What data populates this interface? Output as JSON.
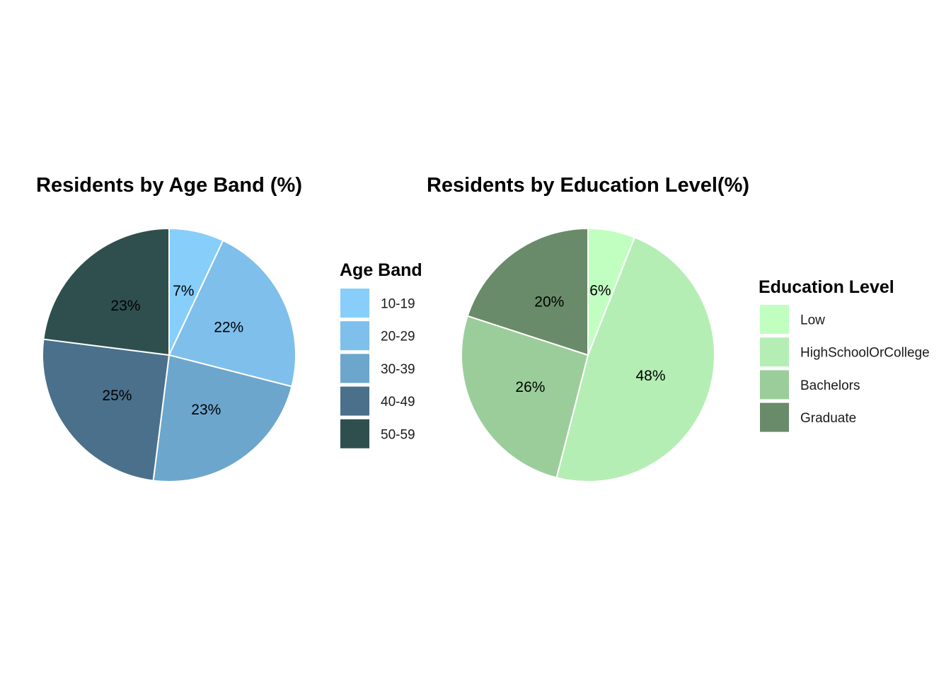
{
  "chart_data": [
    {
      "type": "pie",
      "title": "Residents by Age Band (%)",
      "legend_title": "Age Band",
      "legend_position": "right",
      "categories": [
        "10-19",
        "20-29",
        "30-39",
        "40-49",
        "50-59"
      ],
      "values": [
        7,
        22,
        23,
        25,
        23
      ],
      "labels": [
        "7%",
        "22%",
        "23%",
        "25%",
        "23%"
      ],
      "colors": [
        "#87CEFA",
        "#7FBFEB",
        "#6CA6CD",
        "#4A708B",
        "#2F4F4F"
      ]
    },
    {
      "type": "pie",
      "title": "Residents by Education Level(%)",
      "legend_title": "Education Level",
      "legend_position": "right",
      "categories": [
        "Low",
        "HighSchoolOrCollege",
        "Bachelors",
        "Graduate"
      ],
      "values": [
        6,
        48,
        26,
        20
      ],
      "labels": [
        "6%",
        "48%",
        "26%",
        "20%"
      ],
      "colors": [
        "#C1FFC1",
        "#B4EEB4",
        "#9BCD9B",
        "#698B69"
      ]
    }
  ]
}
